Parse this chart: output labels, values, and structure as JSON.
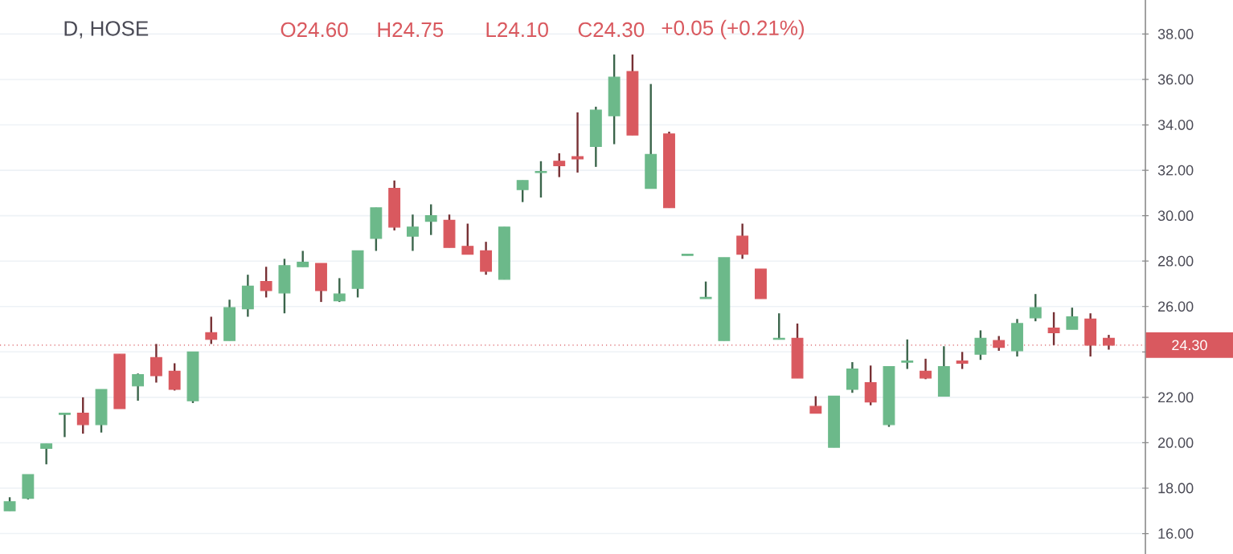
{
  "chart_data": {
    "type": "candlestick",
    "title": "D, HOSE",
    "annotations": [
      "O24.60",
      "H24.75",
      "L24.10",
      "C24.30",
      "+0.05 (+0.21%)"
    ],
    "categories": [
      null,
      null,
      null,
      null,
      null,
      null,
      null,
      null,
      null,
      null,
      null,
      null,
      null,
      null,
      null,
      null,
      null,
      null,
      null,
      null,
      null,
      null,
      null,
      null,
      null,
      null,
      null,
      null,
      null,
      null,
      null,
      null,
      null,
      null,
      null,
      null,
      null,
      null,
      null,
      null,
      null,
      null,
      null,
      null,
      null,
      null,
      null,
      null,
      null,
      null,
      null,
      null,
      null,
      null,
      null,
      null,
      null,
      null,
      null,
      null,
      null
    ],
    "ohlc": [
      [
        17.0,
        17.6,
        17.0,
        17.4
      ],
      [
        17.55,
        18.6,
        17.5,
        18.6
      ],
      [
        19.75,
        19.95,
        19.05,
        19.95
      ],
      [
        21.25,
        21.3,
        20.25,
        21.3
      ],
      [
        21.3,
        22.0,
        20.4,
        20.8
      ],
      [
        20.8,
        22.35,
        20.45,
        22.35
      ],
      [
        23.9,
        23.9,
        21.5,
        21.5
      ],
      [
        22.5,
        23.05,
        21.85,
        23.0
      ],
      [
        23.75,
        24.35,
        22.65,
        22.95
      ],
      [
        23.15,
        23.5,
        22.3,
        22.35
      ],
      [
        21.85,
        24.0,
        21.75,
        24.0
      ],
      [
        24.85,
        25.55,
        24.35,
        24.55
      ],
      [
        24.5,
        26.3,
        24.5,
        25.95
      ],
      [
        25.9,
        27.4,
        25.55,
        26.9
      ],
      [
        27.1,
        27.75,
        26.4,
        26.7
      ],
      [
        26.6,
        28.1,
        25.7,
        27.8
      ],
      [
        27.75,
        28.45,
        27.75,
        27.95
      ],
      [
        27.9,
        27.9,
        26.2,
        26.7
      ],
      [
        26.25,
        27.25,
        26.2,
        26.55
      ],
      [
        26.8,
        28.45,
        26.4,
        28.45
      ],
      [
        29.0,
        30.35,
        28.45,
        30.35
      ],
      [
        31.2,
        31.55,
        29.35,
        29.5
      ],
      [
        29.1,
        30.05,
        28.45,
        29.5
      ],
      [
        29.75,
        30.5,
        29.15,
        30.0
      ],
      [
        29.8,
        30.05,
        28.6,
        28.6
      ],
      [
        28.65,
        29.65,
        28.3,
        28.3
      ],
      [
        28.45,
        28.85,
        27.4,
        27.55
      ],
      [
        27.2,
        29.5,
        27.2,
        29.5
      ],
      [
        31.15,
        31.55,
        30.6,
        31.55
      ],
      [
        31.9,
        32.4,
        30.8,
        31.95
      ],
      [
        32.4,
        32.75,
        31.7,
        32.2
      ],
      [
        32.6,
        34.55,
        31.9,
        32.5
      ],
      [
        33.05,
        34.8,
        32.15,
        34.65
      ],
      [
        34.4,
        37.1,
        33.15,
        36.1
      ],
      [
        36.35,
        37.1,
        33.55,
        33.55
      ],
      [
        31.2,
        35.8,
        31.2,
        32.7
      ],
      [
        33.6,
        33.7,
        30.35,
        30.35
      ],
      [
        28.25,
        28.3,
        28.25,
        28.3
      ],
      [
        26.35,
        27.1,
        26.35,
        26.4
      ],
      [
        24.5,
        28.15,
        24.5,
        28.15
      ],
      [
        29.1,
        29.65,
        28.1,
        28.3
      ],
      [
        27.65,
        27.65,
        26.35,
        26.35
      ],
      [
        24.55,
        25.7,
        24.55,
        24.6
      ],
      [
        24.6,
        25.25,
        22.85,
        22.85
      ],
      [
        21.6,
        22.05,
        21.3,
        21.3
      ],
      [
        19.8,
        22.05,
        19.8,
        22.05
      ],
      [
        22.35,
        23.55,
        22.2,
        23.25
      ],
      [
        22.65,
        23.4,
        21.65,
        21.8
      ],
      [
        20.8,
        23.35,
        20.7,
        23.35
      ],
      [
        23.55,
        24.55,
        23.25,
        23.6
      ],
      [
        23.15,
        23.7,
        22.8,
        22.85
      ],
      [
        22.05,
        24.25,
        22.05,
        23.35
      ],
      [
        23.6,
        24.0,
        23.25,
        23.5
      ],
      [
        23.9,
        24.95,
        23.65,
        24.6
      ],
      [
        24.5,
        24.7,
        24.05,
        24.2
      ],
      [
        24.05,
        25.45,
        23.8,
        25.25
      ],
      [
        25.5,
        26.55,
        25.35,
        25.95
      ],
      [
        25.05,
        25.75,
        24.3,
        24.85
      ],
      [
        25.0,
        25.95,
        25.0,
        25.55
      ],
      [
        25.45,
        25.7,
        23.8,
        24.3
      ],
      [
        24.6,
        24.75,
        24.1,
        24.3
      ]
    ],
    "colors": [
      "#6cb98a",
      "#6cb98a",
      "#6cb98a",
      "#6cb98a",
      "#d9595f",
      "#6cb98a",
      "#d9595f",
      "#6cb98a",
      "#d9595f",
      "#d9595f",
      "#6cb98a",
      "#d9595f",
      "#6cb98a",
      "#6cb98a",
      "#d9595f",
      "#6cb98a",
      "#6cb98a",
      "#d9595f",
      "#6cb98a",
      "#6cb98a",
      "#6cb98a",
      "#d9595f",
      "#6cb98a",
      "#6cb98a",
      "#d9595f",
      "#d9595f",
      "#d9595f",
      "#6cb98a",
      "#6cb98a",
      "#6cb98a",
      "#d9595f",
      "#d9595f",
      "#6cb98a",
      "#6cb98a",
      "#d9595f",
      "#6cb98a",
      "#d9595f",
      "#6cb98a",
      "#6cb98a",
      "#6cb98a",
      "#d9595f",
      "#d9595f",
      "#6cb98a",
      "#d9595f",
      "#d9595f",
      "#6cb98a",
      "#6cb98a",
      "#d9595f",
      "#6cb98a",
      "#6cb98a",
      "#d9595f",
      "#6cb98a",
      "#d9595f",
      "#6cb98a",
      "#d9595f",
      "#6cb98a",
      "#6cb98a",
      "#d9595f",
      "#6cb98a",
      "#d9595f",
      "#d9595f"
    ],
    "ylim": [
      15.1,
      39.5
    ],
    "yticks": [
      {
        "value": 16,
        "label": "16.00"
      },
      {
        "value": 18,
        "label": "18.00"
      },
      {
        "value": 20,
        "label": "20.00"
      },
      {
        "value": 22,
        "label": "22.00"
      },
      {
        "value": 24,
        "label": null
      },
      {
        "value": 26,
        "label": "26.00"
      },
      {
        "value": 28,
        "label": "28.00"
      },
      {
        "value": 30,
        "label": "30.00"
      },
      {
        "value": 32,
        "label": "32.00"
      },
      {
        "value": 34,
        "label": "34.00"
      },
      {
        "value": 36,
        "label": "36.00"
      },
      {
        "value": 38,
        "label": "38.00"
      }
    ],
    "grid": "y",
    "ref_lines": [
      {
        "axis": "y",
        "value": 24.3,
        "label": "24.30",
        "color": "#d9595f",
        "line_style": "dotted"
      }
    ]
  }
}
